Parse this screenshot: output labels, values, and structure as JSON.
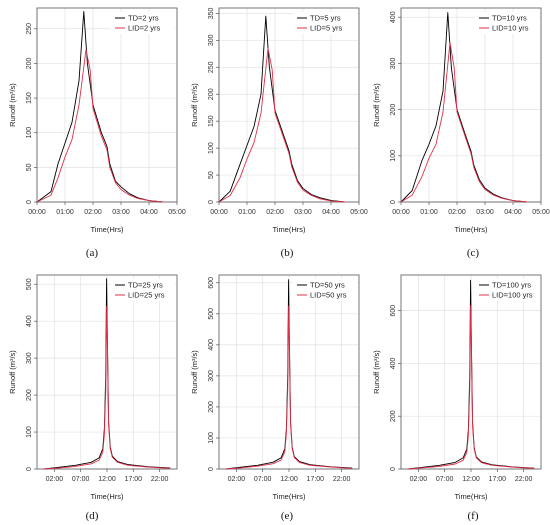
{
  "chart_data": [
    {
      "type": "line",
      "caption": "(a)",
      "xlabel": "Time(Hrs)",
      "ylabel": "Runoff (m³/s)",
      "xlim": [
        0,
        5
      ],
      "ylim": [
        0,
        280
      ],
      "xticks": [
        0,
        1,
        2,
        3,
        4,
        5
      ],
      "xtick_labels": [
        "00:00",
        "01:00",
        "02:00",
        "03:00",
        "04:00",
        "05:00"
      ],
      "yticks": [
        0,
        50,
        100,
        150,
        200,
        250
      ],
      "legend": "top-right",
      "series": [
        {
          "name": "TD=2 yrs",
          "color": "#000000",
          "x": [
            0,
            0.5,
            0.75,
            1.0,
            1.25,
            1.5,
            1.67,
            1.8,
            2.0,
            2.3,
            2.5,
            2.6,
            2.8,
            3.0,
            3.3,
            3.6,
            4.0,
            4.5
          ],
          "y": [
            0,
            15,
            55,
            85,
            115,
            175,
            275,
            200,
            140,
            100,
            80,
            55,
            30,
            22,
            12,
            6,
            2,
            0
          ]
        },
        {
          "name": "LID=2 yrs",
          "color": "#e0304a",
          "x": [
            0,
            0.5,
            0.75,
            1.0,
            1.25,
            1.5,
            1.75,
            1.9,
            2.0,
            2.3,
            2.5,
            2.6,
            2.8,
            3.0,
            3.3,
            3.6,
            4.0,
            4.5
          ],
          "y": [
            0,
            10,
            35,
            65,
            90,
            140,
            220,
            190,
            135,
            95,
            75,
            50,
            28,
            18,
            10,
            5,
            2,
            0
          ]
        }
      ]
    },
    {
      "type": "line",
      "caption": "(b)",
      "xlabel": "Time(Hrs)",
      "ylabel": "Runoff (m³/s)",
      "xlim": [
        0,
        5
      ],
      "ylim": [
        0,
        360
      ],
      "xticks": [
        0,
        1,
        2,
        3,
        4,
        5
      ],
      "xtick_labels": [
        "00:00",
        "01:00",
        "02:00",
        "03:00",
        "04:00",
        "05:00"
      ],
      "yticks": [
        0,
        50,
        100,
        150,
        200,
        250,
        300,
        350
      ],
      "legend": "top-right",
      "series": [
        {
          "name": "TD=5 yrs",
          "color": "#000000",
          "x": [
            0,
            0.4,
            0.75,
            1.0,
            1.25,
            1.5,
            1.67,
            1.8,
            2.0,
            2.3,
            2.5,
            2.6,
            2.8,
            3.0,
            3.3,
            3.6,
            4.0,
            4.5
          ],
          "y": [
            0,
            20,
            70,
            105,
            140,
            200,
            345,
            250,
            170,
            125,
            95,
            70,
            40,
            25,
            14,
            8,
            3,
            0
          ]
        },
        {
          "name": "LID=5 yrs",
          "color": "#e0304a",
          "x": [
            0,
            0.4,
            0.75,
            1.0,
            1.25,
            1.5,
            1.75,
            1.9,
            2.0,
            2.3,
            2.5,
            2.6,
            2.8,
            3.0,
            3.3,
            3.6,
            4.0,
            4.5
          ],
          "y": [
            0,
            12,
            45,
            80,
            110,
            165,
            285,
            245,
            165,
            120,
            90,
            65,
            37,
            22,
            12,
            6,
            2,
            0
          ]
        }
      ]
    },
    {
      "type": "line",
      "caption": "(c)",
      "xlabel": "Time(Hrs)",
      "ylabel": "Runoff (m³/s)",
      "xlim": [
        0,
        5
      ],
      "ylim": [
        0,
        420
      ],
      "xticks": [
        0,
        1,
        2,
        3,
        4,
        5
      ],
      "xtick_labels": [
        "00:00",
        "01:00",
        "02:00",
        "03:00",
        "04:00",
        "05:00"
      ],
      "yticks": [
        0,
        100,
        200,
        300,
        400
      ],
      "legend": "top-right",
      "series": [
        {
          "name": "TD=10 yrs",
          "color": "#000000",
          "x": [
            0,
            0.4,
            0.75,
            1.0,
            1.25,
            1.5,
            1.67,
            1.8,
            2.0,
            2.3,
            2.5,
            2.6,
            2.8,
            3.0,
            3.3,
            3.6,
            4.0,
            4.5
          ],
          "y": [
            0,
            25,
            90,
            125,
            165,
            240,
            410,
            290,
            200,
            145,
            110,
            80,
            48,
            30,
            17,
            9,
            3,
            0
          ]
        },
        {
          "name": "LID=10 yrs",
          "color": "#e0304a",
          "x": [
            0,
            0.4,
            0.75,
            1.0,
            1.25,
            1.5,
            1.75,
            1.9,
            2.0,
            2.3,
            2.5,
            2.6,
            2.8,
            3.0,
            3.3,
            3.6,
            4.0,
            4.5
          ],
          "y": [
            0,
            15,
            55,
            95,
            125,
            195,
            345,
            290,
            195,
            140,
            105,
            75,
            44,
            27,
            15,
            8,
            3,
            0
          ]
        }
      ]
    },
    {
      "type": "line",
      "caption": "(d)",
      "xlabel": "Time(Hrs)",
      "ylabel": "Runoff (m³/s)",
      "xlim": [
        -1.3,
        25.3
      ],
      "ylim": [
        0,
        525
      ],
      "xticks": [
        2,
        7,
        12,
        17,
        22
      ],
      "xtick_labels": [
        "02:00",
        "07:00",
        "12:00",
        "17:00",
        "22:00"
      ],
      "yticks": [
        0,
        100,
        200,
        300,
        400,
        500
      ],
      "legend": "top-right",
      "series": [
        {
          "name": "TD=25 yrs",
          "color": "#000000",
          "x": [
            0,
            3,
            6,
            9,
            10.5,
            11.2,
            11.5,
            11.75,
            11.92,
            12.1,
            12.3,
            12.6,
            13,
            14,
            16,
            20,
            24
          ],
          "y": [
            0,
            5,
            10,
            18,
            30,
            55,
            110,
            250,
            515,
            330,
            130,
            60,
            35,
            20,
            12,
            6,
            3
          ]
        },
        {
          "name": "LID=25 yrs",
          "color": "#e0304a",
          "x": [
            0,
            3,
            6,
            9,
            10.5,
            11.2,
            11.5,
            11.75,
            11.95,
            12.1,
            12.3,
            12.6,
            13,
            14,
            16,
            20,
            24
          ],
          "y": [
            0,
            3,
            7,
            14,
            24,
            45,
            95,
            210,
            440,
            320,
            120,
            55,
            32,
            18,
            10,
            5,
            2
          ]
        }
      ]
    },
    {
      "type": "line",
      "caption": "(e)",
      "xlabel": "Time(Hrs)",
      "ylabel": "Runoff (m³/s)",
      "xlim": [
        -1.3,
        25.3
      ],
      "ylim": [
        0,
        625
      ],
      "xticks": [
        2,
        7,
        12,
        17,
        22
      ],
      "xtick_labels": [
        "02:00",
        "07:00",
        "12:00",
        "17:00",
        "22:00"
      ],
      "yticks": [
        0,
        100,
        200,
        300,
        400,
        500,
        600
      ],
      "legend": "top-right",
      "series": [
        {
          "name": "TD=50 yrs",
          "color": "#000000",
          "x": [
            0,
            3,
            6,
            9,
            10.5,
            11.2,
            11.5,
            11.75,
            11.92,
            12.1,
            12.3,
            12.6,
            13,
            14,
            16,
            20,
            24
          ],
          "y": [
            0,
            6,
            12,
            22,
            36,
            65,
            130,
            300,
            610,
            390,
            150,
            70,
            40,
            24,
            14,
            7,
            3
          ]
        },
        {
          "name": "LID=50 yrs",
          "color": "#e0304a",
          "x": [
            0,
            3,
            6,
            9,
            10.5,
            11.2,
            11.5,
            11.75,
            11.95,
            12.1,
            12.3,
            12.6,
            13,
            14,
            16,
            20,
            24
          ],
          "y": [
            0,
            4,
            9,
            17,
            29,
            55,
            115,
            260,
            525,
            370,
            140,
            65,
            37,
            21,
            12,
            6,
            2
          ]
        }
      ]
    },
    {
      "type": "line",
      "caption": "(f)",
      "xlabel": "Time(Hrs)",
      "ylabel": "Runoff (m³/s)",
      "xlim": [
        -1.3,
        25.3
      ],
      "ylim": [
        0,
        735
      ],
      "xticks": [
        2,
        7,
        12,
        17,
        22
      ],
      "xtick_labels": [
        "02:00",
        "07:00",
        "12:00",
        "17:00",
        "22:00"
      ],
      "yticks": [
        0,
        200,
        400,
        600
      ],
      "legend": "top-right",
      "series": [
        {
          "name": "TD=100 yrs",
          "color": "#000000",
          "x": [
            0,
            3,
            6,
            9,
            10.5,
            11.2,
            11.5,
            11.75,
            11.92,
            12.1,
            12.3,
            12.6,
            13,
            14,
            16,
            20,
            24
          ],
          "y": [
            0,
            7,
            14,
            25,
            42,
            75,
            150,
            350,
            715,
            450,
            175,
            80,
            46,
            27,
            16,
            8,
            3
          ]
        },
        {
          "name": "LID=100 yrs",
          "color": "#e0304a",
          "x": [
            0,
            3,
            6,
            9,
            10.5,
            11.2,
            11.5,
            11.75,
            11.95,
            12.1,
            12.3,
            12.6,
            13,
            14,
            16,
            20,
            24
          ],
          "y": [
            0,
            5,
            10,
            19,
            33,
            62,
            130,
            300,
            620,
            430,
            160,
            75,
            42,
            24,
            14,
            7,
            2
          ]
        }
      ]
    }
  ]
}
